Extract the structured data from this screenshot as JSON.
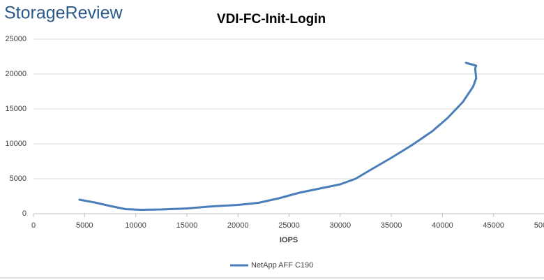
{
  "brand": "StorageReview",
  "chart_data": {
    "type": "line",
    "title": "VDI-FC-Init-Login",
    "xlabel": "IOPS",
    "xlim": [
      0,
      50000
    ],
    "xticks": [
      0,
      5000,
      10000,
      15000,
      20000,
      25000,
      30000,
      35000,
      40000,
      45000,
      50000
    ],
    "ylim": [
      0,
      25000
    ],
    "yticks": [
      0,
      5000,
      10000,
      15000,
      20000,
      25000
    ],
    "grid": true,
    "legend": "bottom",
    "series": [
      {
        "name": "NetApp AFF C190",
        "color": "#4a7ebb",
        "x": [
          4500,
          6000,
          7500,
          9000,
          10500,
          12500,
          15000,
          17500,
          20000,
          22000,
          24000,
          26000,
          28000,
          30000,
          31500,
          33000,
          35000,
          37000,
          39000,
          40500,
          42000,
          43000,
          43300,
          43200,
          43300,
          42300
        ],
        "values": [
          2000,
          1600,
          1100,
          650,
          550,
          600,
          750,
          1050,
          1250,
          1550,
          2200,
          3000,
          3600,
          4200,
          5000,
          6300,
          8000,
          9800,
          11800,
          13700,
          16000,
          18200,
          19400,
          20800,
          21200,
          21600
        ]
      }
    ]
  }
}
